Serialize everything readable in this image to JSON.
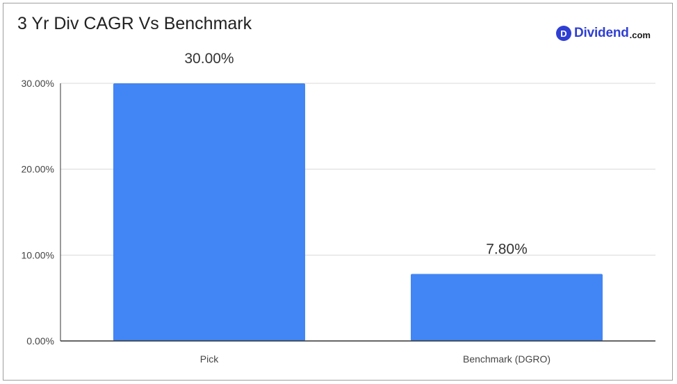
{
  "chart_data": {
    "type": "bar",
    "title": "3 Yr Div CAGR Vs Benchmark",
    "categories": [
      "Pick",
      "Benchmark (DGRO)"
    ],
    "series": [
      {
        "values": [
          30.0,
          7.8
        ],
        "data_labels": [
          "30.00%",
          "7.80%"
        ],
        "color": "#4285f4"
      }
    ],
    "xlabel": "",
    "ylabel": "",
    "ylim": [
      0,
      30
    ],
    "yticks": [
      0,
      10,
      20,
      30
    ],
    "ytick_labels": [
      "0.00%",
      "10.00%",
      "20.00%",
      "30.00%"
    ],
    "grid": true,
    "legend": "none"
  },
  "logo": {
    "mark": "D",
    "name": "Dividend",
    "tld": ".com",
    "color": "#2f3fd3"
  }
}
